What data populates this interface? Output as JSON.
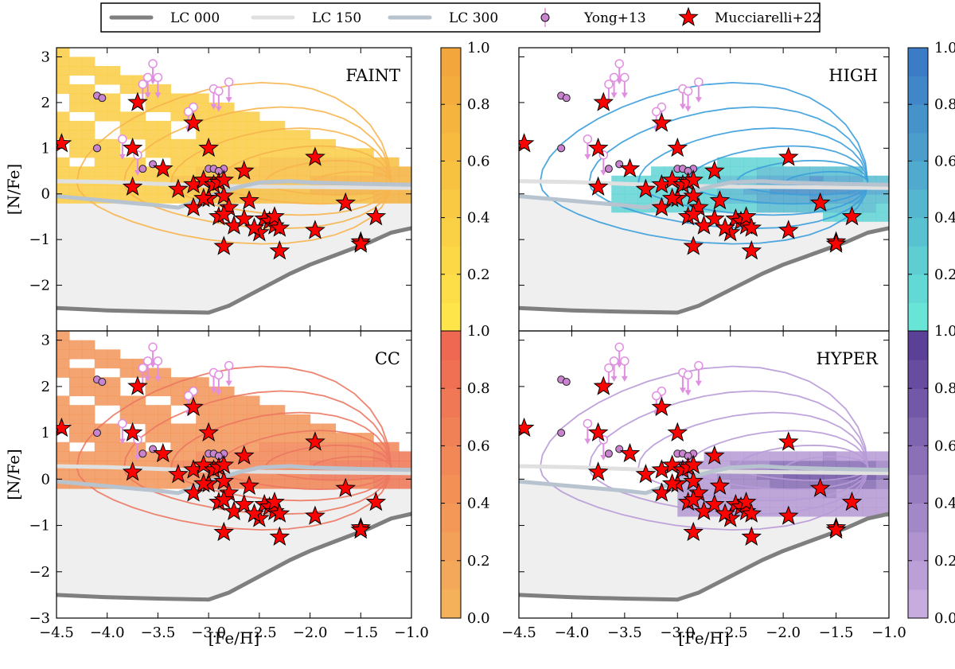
{
  "legend": {
    "entries": [
      {
        "label": "LC 000",
        "kind": "line",
        "color": "#7f7f7f"
      },
      {
        "label": "LC 150",
        "kind": "line",
        "color": "#e0e0e0"
      },
      {
        "label": "LC 300",
        "kind": "line",
        "color": "#b7c3cf"
      },
      {
        "label": "Yong+13",
        "kind": "errpoint",
        "color": "#e08fe0"
      },
      {
        "label": "Mucciarelli+22",
        "kind": "star",
        "color": "#ff0000"
      }
    ]
  },
  "chart_data": {
    "type": "scatter",
    "xlabel": "[Fe/H]",
    "ylabel": "[N/Fe]",
    "xlim": [
      -4.5,
      -1.0
    ],
    "ylim": [
      -3.0,
      3.2
    ],
    "xticks": [
      -4.5,
      -4.0,
      -3.5,
      -3.0,
      -2.5,
      -2.0,
      -1.5,
      -1.0
    ],
    "xtick_labels": [
      "−4.5",
      "−4.0",
      "−3.5",
      "−3.0",
      "−2.5",
      "−2.0",
      "−1.5",
      "−1.0"
    ],
    "yticks": [
      -3,
      -2,
      -1,
      0,
      1,
      2,
      3
    ],
    "ytick_labels": [
      "−3",
      "−2",
      "−1",
      "0",
      "1",
      "2",
      "3"
    ],
    "colorbar_ticks": [
      0.0,
      0.2,
      0.4,
      0.6,
      0.8,
      1.0
    ],
    "colorbar_tick_labels": [
      "0.0",
      "0.2",
      "0.4",
      "0.6",
      "0.8",
      "1.0"
    ],
    "lc_curves": {
      "LC 000": {
        "x": [
          -4.5,
          -4.0,
          -3.5,
          -3.0,
          -2.8,
          -2.5,
          -2.2,
          -2.0,
          -1.7,
          -1.4,
          -1.2,
          -1.0
        ],
        "y": [
          -2.5,
          -2.55,
          -2.58,
          -2.6,
          -2.45,
          -2.1,
          -1.75,
          -1.55,
          -1.3,
          -1.05,
          -0.85,
          -0.75
        ]
      },
      "LC 150": {
        "x": [
          -4.5,
          -4.0,
          -3.5,
          -3.0,
          -2.5,
          -2.0,
          -1.5,
          -1.0
        ],
        "y": [
          0.28,
          0.26,
          0.22,
          0.18,
          0.16,
          0.15,
          0.14,
          0.13
        ]
      },
      "LC 300": {
        "x": [
          -4.5,
          -4.0,
          -3.5,
          -3.3,
          -3.0,
          -2.7,
          -2.5,
          -2.2,
          -2.0,
          -1.5,
          -1.0
        ],
        "y": [
          -0.05,
          -0.15,
          -0.25,
          -0.3,
          -0.05,
          0.15,
          0.25,
          0.28,
          0.25,
          0.22,
          0.2
        ]
      }
    },
    "series": [
      {
        "name": "Mucciarelli+22",
        "marker": "star",
        "x": [
          -4.45,
          -3.7,
          -3.75,
          -3.75,
          -3.45,
          -3.3,
          -3.15,
          -3.15,
          -3.05,
          -3.0,
          -3.0,
          -2.95,
          -2.9,
          -2.85,
          -2.85,
          -2.8,
          -2.65,
          -2.6,
          -2.9,
          -3.15,
          -3.05,
          -2.85,
          -2.75,
          -2.65,
          -2.5,
          -2.45,
          -2.4,
          -2.35,
          -2.35,
          -2.3,
          -2.55,
          -2.3,
          -2.85,
          -1.95,
          -1.65,
          -1.5,
          -1.35,
          -1.95,
          -1.5
        ],
        "y": [
          1.1,
          2.0,
          1.0,
          0.15,
          0.55,
          0.1,
          1.55,
          0.2,
          0.3,
          1.0,
          -0.1,
          0.2,
          0.25,
          0.3,
          -0.05,
          -0.3,
          0.5,
          -0.15,
          -0.5,
          -0.3,
          -0.1,
          -0.45,
          -0.7,
          -0.55,
          -0.85,
          -0.55,
          -0.6,
          -0.7,
          -0.5,
          -1.25,
          -0.75,
          -0.75,
          -1.15,
          0.8,
          -0.2,
          -1.05,
          -0.5,
          -0.8,
          -1.1
        ]
      },
      {
        "name": "Yong+13",
        "marker": "circle",
        "x": [
          -4.1,
          -4.05,
          -4.1,
          -3.65,
          -3.55,
          -3.0,
          -2.95,
          -2.9,
          -2.85,
          -2.9
        ],
        "y": [
          2.15,
          2.1,
          1.0,
          0.55,
          0.65,
          0.55,
          0.55,
          0.5,
          0.55,
          0.5
        ]
      },
      {
        "name": "Yong+13 upper limits",
        "marker": "open-circle-arrow",
        "x": [
          -3.55,
          -3.6,
          -3.65,
          -3.5,
          -3.85,
          -3.7,
          -3.15,
          -3.2,
          -2.95,
          -2.9,
          -2.8
        ],
        "y": [
          2.85,
          2.55,
          2.4,
          2.55,
          1.2,
          0.85,
          1.9,
          1.8,
          2.3,
          2.25,
          2.45
        ]
      }
    ],
    "panels": [
      {
        "label": "FAINT",
        "label_color": "#f7c51b",
        "cmap_hi": "#f2a23a",
        "cmap_lo": "#ffe94a",
        "contour_color": "#f7b44c",
        "heat_mode": "faint"
      },
      {
        "label": "HIGH",
        "label_color": "#bcdde5",
        "cmap_hi": "#3a75c4",
        "cmap_lo": "#6aebd8",
        "contour_color": "#3b9edb",
        "heat_mode": "high"
      },
      {
        "label": "CC",
        "label_color": "#f7b44c",
        "cmap_hi": "#ee6452",
        "cmap_lo": "#f5b45a",
        "contour_color": "#ec7760",
        "heat_mode": "faint"
      },
      {
        "label": "HYPER",
        "label_color": "#7a2194",
        "cmap_hi": "#553a93",
        "cmap_lo": "#cdb2e3",
        "contour_color": "#b89ad8",
        "heat_mode": "hyper"
      }
    ]
  }
}
